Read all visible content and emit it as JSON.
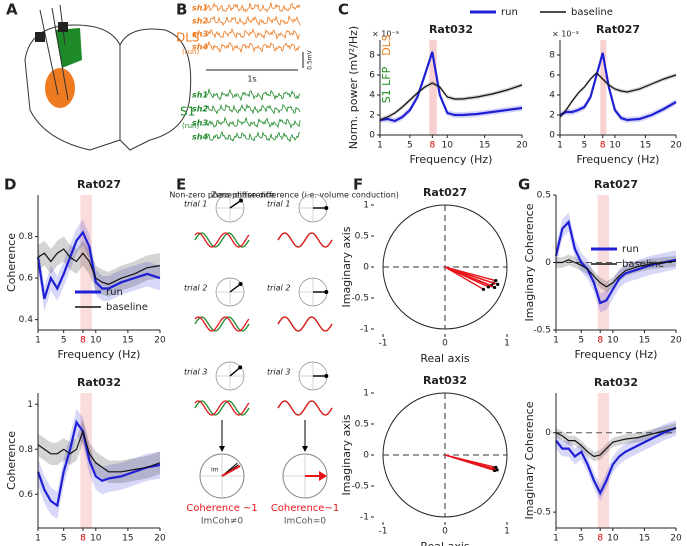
{
  "panel_letters": [
    "A",
    "B",
    "C",
    "D",
    "E",
    "F",
    "G"
  ],
  "panel_b": {
    "dls": "DLS",
    "dls_note": "(run)",
    "s1": "S1",
    "s1_note": "(run)",
    "channels": [
      "sh1",
      "sh2",
      "sh3",
      "sh4"
    ],
    "time_scale": "1s",
    "amp_scale": "0.5mV"
  },
  "panel_e": {
    "left_title": "Non-zero phase difference",
    "right_title": "Zero phase difference (i.e. volume conduction)",
    "trials": [
      "trial 1",
      "trial 2",
      "trial 3"
    ],
    "im": "Im",
    "left_result": "Coherence ~1",
    "left_note": "ImCoh≠0",
    "right_result": "Coherence~1",
    "right_note": "ImCoh=0"
  },
  "chart_data": [
    {
      "type": "line",
      "title": "Rat032",
      "xlabel": "Frequency (Hz)",
      "ylabel": "Norm. power (mV²/Hz)",
      "scale_label": "× 10⁻³",
      "ylabel_notes": [
        {
          "text": "DLS",
          "color": "#e8821e"
        },
        {
          "text": "S1 LFP",
          "color": "#1a8a1a"
        }
      ],
      "x": [
        1,
        2,
        3,
        4,
        5,
        6,
        7,
        8,
        9,
        10,
        11,
        12,
        14,
        16,
        18,
        20
      ],
      "xlim": [
        1,
        20
      ],
      "xticks": [
        1,
        5,
        8,
        10,
        15,
        20
      ],
      "xtick_colors": [
        "#222",
        "#222",
        "#d00000",
        "#222",
        "#222",
        "#222"
      ],
      "ylim": [
        0,
        9.5
      ],
      "yticks": [
        0,
        2,
        4,
        6,
        8
      ],
      "highlight_x": [
        7.6,
        8.6
      ],
      "highlight_color": "#f8d0d0",
      "legend": "top",
      "series": [
        {
          "name": "run",
          "color": "#1f1fd6",
          "error": 0.3,
          "values": [
            1.5,
            1.6,
            1.4,
            1.8,
            2.5,
            3.8,
            6,
            8.3,
            4,
            2.2,
            2,
            2,
            2.1,
            2.3,
            2.5,
            2.7
          ]
        },
        {
          "name": "baseline",
          "color": "#111111",
          "error": 0.2,
          "values": [
            1.5,
            1.8,
            2.2,
            2.8,
            3.5,
            4.2,
            4.8,
            5.2,
            4.8,
            3.8,
            3.6,
            3.6,
            3.8,
            4.1,
            4.5,
            5
          ]
        }
      ]
    },
    {
      "type": "line",
      "title": "Rat027",
      "xlabel": "Frequency (Hz)",
      "scale_label": "× 10⁻³",
      "x": [
        1,
        2,
        3,
        4,
        5,
        6,
        7,
        8,
        9,
        10,
        11,
        12,
        14,
        16,
        18,
        20
      ],
      "xlim": [
        1,
        20
      ],
      "xticks": [
        1,
        5,
        8,
        10,
        15,
        20
      ],
      "xtick_colors": [
        "#222",
        "#222",
        "#d00000",
        "#222",
        "#222",
        "#222"
      ],
      "ylim": [
        0,
        9.5
      ],
      "yticks": [
        0,
        2,
        4,
        6,
        8
      ],
      "highlight_x": [
        7.6,
        8.6
      ],
      "highlight_color": "#f8d0d0",
      "series": [
        {
          "name": "run",
          "color": "#1f1fd6",
          "error": 0.3,
          "values": [
            2,
            2.3,
            2.3,
            2.5,
            2.8,
            3.8,
            6,
            8.2,
            4.8,
            2.5,
            1.7,
            1.5,
            1.6,
            2,
            2.6,
            3.3
          ]
        },
        {
          "name": "baseline",
          "color": "#111111",
          "error": 0.2,
          "values": [
            1.8,
            2.5,
            3.4,
            4.2,
            4.8,
            5.6,
            6.2,
            5.6,
            5,
            4.6,
            4.4,
            4.3,
            4.6,
            5.1,
            5.6,
            6
          ]
        }
      ]
    },
    {
      "type": "line",
      "title": "Rat027",
      "xlabel": "Frequency (Hz)",
      "ylabel": "Coherence",
      "x": [
        1,
        2,
        3,
        4,
        5,
        6,
        7,
        8,
        9,
        10,
        11,
        12,
        14,
        16,
        18,
        20
      ],
      "xlim": [
        1,
        20
      ],
      "xticks": [
        1,
        5,
        8,
        10,
        15,
        20
      ],
      "xtick_colors": [
        "#222",
        "#222",
        "#d00000",
        "#222",
        "#222",
        "#222"
      ],
      "ylim": [
        0.35,
        1
      ],
      "yticks": [
        0.4,
        0.6,
        0.8
      ],
      "highlight_x": [
        7.6,
        9.4
      ],
      "highlight_color": "#fbdcdc",
      "legend": "lower right",
      "series": [
        {
          "name": "run",
          "color": "#1f1fd6",
          "error": 0.06,
          "values": [
            0.7,
            0.5,
            0.6,
            0.55,
            0.62,
            0.7,
            0.78,
            0.82,
            0.75,
            0.58,
            0.55,
            0.55,
            0.58,
            0.6,
            0.62,
            0.6
          ]
        },
        {
          "name": "baseline",
          "color": "#111111",
          "error": 0.06,
          "values": [
            0.7,
            0.72,
            0.68,
            0.72,
            0.74,
            0.7,
            0.68,
            0.72,
            0.68,
            0.6,
            0.58,
            0.57,
            0.6,
            0.62,
            0.65,
            0.66
          ]
        }
      ]
    },
    {
      "type": "line",
      "title": "Rat032",
      "xlabel": "Frequency (Hz)",
      "ylabel": "Coherence",
      "x": [
        1,
        2,
        3,
        4,
        5,
        6,
        7,
        8,
        9,
        10,
        11,
        12,
        14,
        16,
        18,
        20
      ],
      "xlim": [
        1,
        20
      ],
      "xticks": [
        1,
        5,
        8,
        10,
        15,
        20
      ],
      "xtick_colors": [
        "#222",
        "#222",
        "#d00000",
        "#222",
        "#222",
        "#222"
      ],
      "ylim": [
        0.45,
        1.05
      ],
      "yticks": [
        0.6,
        0.8,
        1
      ],
      "highlight_x": [
        7.6,
        9.4
      ],
      "highlight_color": "#fbdcdc",
      "series": [
        {
          "name": "run",
          "color": "#1f1fd6",
          "error": 0.06,
          "values": [
            0.7,
            0.62,
            0.57,
            0.55,
            0.7,
            0.8,
            0.92,
            0.88,
            0.75,
            0.68,
            0.66,
            0.67,
            0.68,
            0.7,
            0.72,
            0.73
          ]
        },
        {
          "name": "baseline",
          "color": "#111111",
          "error": 0.05,
          "values": [
            0.82,
            0.8,
            0.78,
            0.78,
            0.8,
            0.78,
            0.8,
            0.88,
            0.78,
            0.74,
            0.72,
            0.7,
            0.7,
            0.71,
            0.72,
            0.74
          ]
        }
      ]
    },
    {
      "type": "phasor",
      "title": "Rat027",
      "xlabel": "Real axis",
      "ylabel": "Imaginary axis",
      "color": "#e8141a",
      "xlim": [
        -1,
        1
      ],
      "ylim": [
        -1,
        1
      ],
      "xticks": [
        -1,
        0,
        1
      ],
      "yticks": [
        -1,
        -0.5,
        0,
        0.5,
        1
      ],
      "x": [
        0.62,
        0.7,
        0.75,
        0.78,
        0.8,
        0.82,
        0.85
      ],
      "values": [
        -0.36,
        -0.32,
        -0.3,
        -0.26,
        -0.33,
        -0.22,
        -0.28
      ]
    },
    {
      "type": "phasor",
      "title": "Rat032",
      "xlabel": "Real axis",
      "ylabel": "Imaginary axis",
      "color": "#e8141a",
      "xlim": [
        -1,
        1
      ],
      "ylim": [
        -1,
        1
      ],
      "xticks": [
        -1,
        0,
        1
      ],
      "yticks": [
        -1,
        -0.5,
        0,
        0.5,
        1
      ],
      "x": [
        0.78,
        0.8,
        0.82,
        0.84
      ],
      "values": [
        -0.22,
        -0.25,
        -0.2,
        -0.24
      ]
    },
    {
      "type": "line",
      "title": "Rat027",
      "xlabel": "Frequency (Hz)",
      "ylabel": "Imaginary Coherence",
      "zero_line": true,
      "x": [
        1,
        2,
        3,
        4,
        5,
        6,
        7,
        8,
        9,
        10,
        11,
        12,
        14,
        16,
        18,
        20
      ],
      "xlim": [
        1,
        20
      ],
      "xticks": [
        1,
        5,
        8,
        10,
        15,
        20
      ],
      "xtick_colors": [
        "#222",
        "#222",
        "#d00000",
        "#222",
        "#222",
        "#222"
      ],
      "ylim": [
        -0.5,
        0.5
      ],
      "yticks": [
        -0.5,
        0,
        0.5
      ],
      "highlight_x": [
        7.6,
        9.4
      ],
      "highlight_color": "#fbdcdc",
      "legend": "center right",
      "series": [
        {
          "name": "run",
          "color": "#1f1fd6",
          "error": 0.07,
          "values": [
            0.05,
            0.25,
            0.3,
            0.1,
            0,
            -0.05,
            -0.15,
            -0.3,
            -0.28,
            -0.2,
            -0.12,
            -0.08,
            -0.05,
            -0.02,
            0,
            0.02
          ]
        },
        {
          "name": "baseline",
          "color": "#111111",
          "error": 0.04,
          "values": [
            0,
            0,
            0.02,
            0,
            -0.02,
            -0.05,
            -0.1,
            -0.15,
            -0.18,
            -0.15,
            -0.1,
            -0.06,
            -0.03,
            -0.01,
            0,
            0.01
          ]
        }
      ]
    },
    {
      "type": "line",
      "title": "Rat032",
      "xlabel": "Frequency (Hz)",
      "ylabel": "Imaginary Coherence",
      "zero_line": true,
      "x": [
        1,
        2,
        3,
        4,
        5,
        6,
        7,
        8,
        9,
        10,
        11,
        12,
        14,
        16,
        18,
        20
      ],
      "xlim": [
        1,
        20
      ],
      "xticks": [
        1,
        5,
        8,
        10,
        15,
        20
      ],
      "xtick_colors": [
        "#222",
        "#222",
        "#d00000",
        "#222",
        "#222",
        "#222"
      ],
      "ylim": [
        -0.6,
        0.25
      ],
      "yticks": [
        -0.5,
        0
      ],
      "highlight_x": [
        7.6,
        9.4
      ],
      "highlight_color": "#fbdcdc",
      "series": [
        {
          "name": "run",
          "color": "#1f1fd6",
          "error": 0.05,
          "values": [
            -0.05,
            -0.1,
            -0.1,
            -0.15,
            -0.12,
            -0.2,
            -0.3,
            -0.38,
            -0.3,
            -0.2,
            -0.15,
            -0.12,
            -0.08,
            -0.04,
            0,
            0.03
          ]
        },
        {
          "name": "baseline",
          "color": "#111111",
          "error": 0.03,
          "values": [
            0,
            -0.02,
            -0.05,
            -0.05,
            -0.08,
            -0.12,
            -0.15,
            -0.14,
            -0.1,
            -0.06,
            -0.05,
            -0.04,
            -0.03,
            -0.01,
            0.01,
            0.03
          ]
        }
      ]
    }
  ]
}
